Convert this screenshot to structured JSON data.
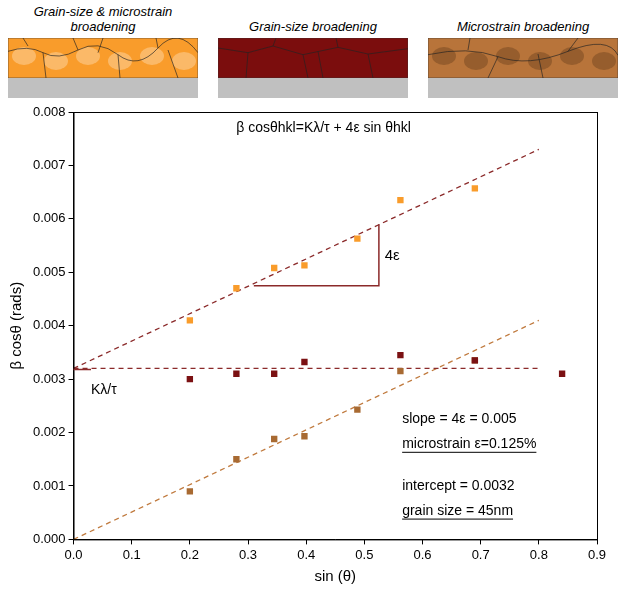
{
  "panels": [
    {
      "title": "Grain-size & microstrain broadening",
      "color": "#f99c2b"
    },
    {
      "title": "Grain-size broadening",
      "color": "#7b0d0d"
    },
    {
      "title": "Microstrain broadening",
      "color": "#b8743a"
    }
  ],
  "chart_data": {
    "type": "scatter",
    "x_label": "sin (θ)",
    "y_label": "β cosθ (rads)",
    "xlim": [
      0,
      0.9
    ],
    "xticks": [
      {
        "value": 0,
        "label": "0.0"
      },
      0.1,
      0.2,
      0.3,
      0.4,
      0.5,
      0.6,
      0.7,
      0.8,
      0.9
    ],
    "ylim": [
      0,
      0.008
    ],
    "yticks": [
      {
        "value": 0,
        "label": "0.000"
      },
      0.001,
      0.002,
      0.003,
      0.004,
      0.005,
      0.006,
      0.007,
      0.008
    ],
    "grid": false,
    "series": [
      {
        "type": "line",
        "line_style": "dashed",
        "marker": "none",
        "color": "#8b2a2a",
        "x": [
          0,
          0.8
        ],
        "values": [
          0.0032,
          0.0073
        ]
      },
      {
        "type": "line",
        "line_style": "dashed",
        "marker": "none",
        "color": "#8b2a2a",
        "x": [
          0,
          0.8
        ],
        "values": [
          0.0032,
          0.0032
        ]
      },
      {
        "type": "line",
        "line_style": "dashed",
        "marker": "none",
        "color": "#c07a3e",
        "x": [
          0,
          0.8
        ],
        "values": [
          0,
          0.0041
        ]
      },
      {
        "type": "scatter",
        "marker": "square",
        "color": "#f99c2b",
        "x": [
          0.2,
          0.28,
          0.345,
          0.397,
          0.488,
          0.562,
          0.69
        ],
        "values": [
          0.0041,
          0.0047,
          0.00508,
          0.00513,
          0.00563,
          0.00635,
          0.00657
        ]
      },
      {
        "type": "scatter",
        "marker": "square",
        "color": "#7b1113",
        "x": [
          0.2,
          0.28,
          0.345,
          0.397,
          0.562,
          0.69,
          0.84
        ],
        "values": [
          0.003,
          0.0031,
          0.0031,
          0.00332,
          0.00345,
          0.00335,
          0.0031
        ]
      },
      {
        "type": "scatter",
        "marker": "square",
        "color": "#a86a32",
        "x": [
          0.2,
          0.28,
          0.345,
          0.397,
          0.488,
          0.562,
          0.69
        ],
        "values": [
          0.0009,
          0.0015,
          0.00188,
          0.00193,
          0.00243,
          0.00315,
          0.00335
        ]
      }
    ],
    "annotations": [
      {
        "text": "β cosθhkl=Kλ/τ + 4ε sin θhkl"
      },
      {
        "text": "4ε"
      },
      {
        "text": "Kλ/τ"
      },
      {
        "text": "slope = 4ε = 0.005"
      },
      {
        "text": "microstrain ε=0.125%"
      },
      {
        "text": "intercept = 0.0032"
      },
      {
        "text": "grain size = 45nm"
      }
    ]
  }
}
